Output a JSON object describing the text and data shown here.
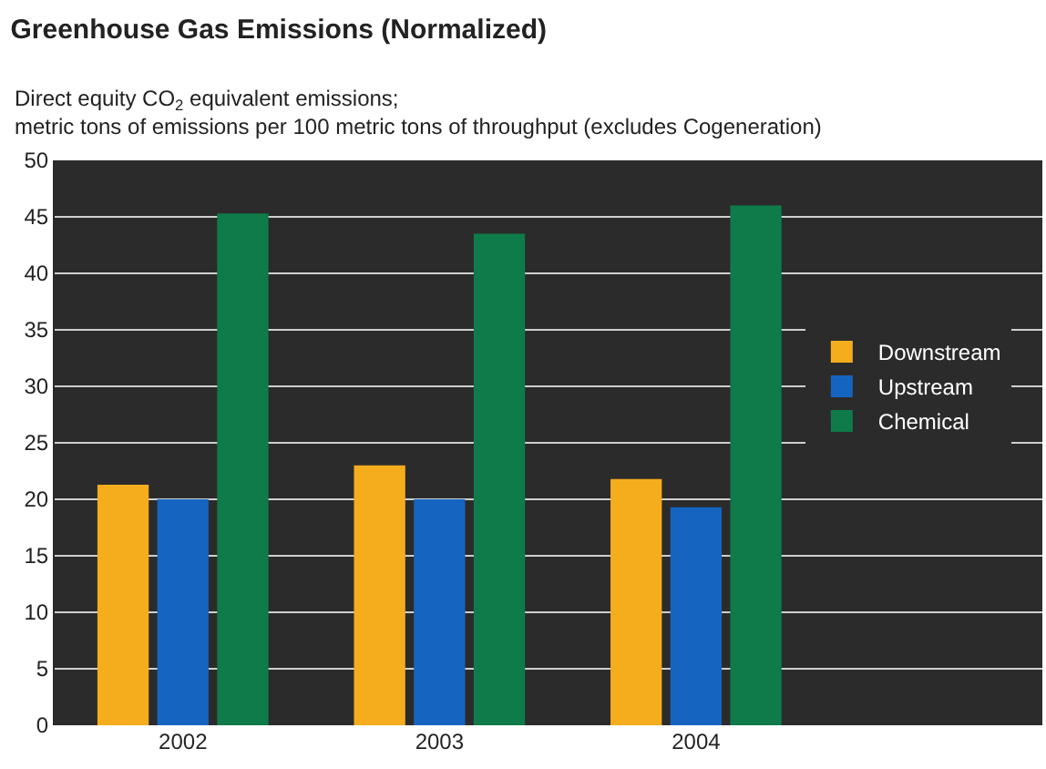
{
  "chart_data": {
    "type": "bar",
    "title": "Greenhouse Gas Emissions (Normalized)",
    "subtitle": "Direct equity CO$_{2}$ equivalent emissions;\nmetric tons of emissions per 100 metric tons of throughput (excludes Cogeneration)",
    "categories": [
      "2002",
      "2003",
      "2004"
    ],
    "series": [
      {
        "name": "Downstream",
        "color": "#f5ad1d",
        "values": [
          21.3,
          23.0,
          21.8
        ]
      },
      {
        "name": "Upstream",
        "color": "#1565c0",
        "values": [
          20.0,
          20.0,
          19.3
        ]
      },
      {
        "name": "Chemical",
        "color": "#0f7a4a",
        "values": [
          45.3,
          43.5,
          46.0
        ]
      }
    ],
    "ylim": [
      0,
      50
    ],
    "yticks": [
      0,
      5,
      10,
      15,
      20,
      25,
      30,
      35,
      40,
      45,
      50
    ],
    "grid": "y",
    "legend": "right"
  }
}
